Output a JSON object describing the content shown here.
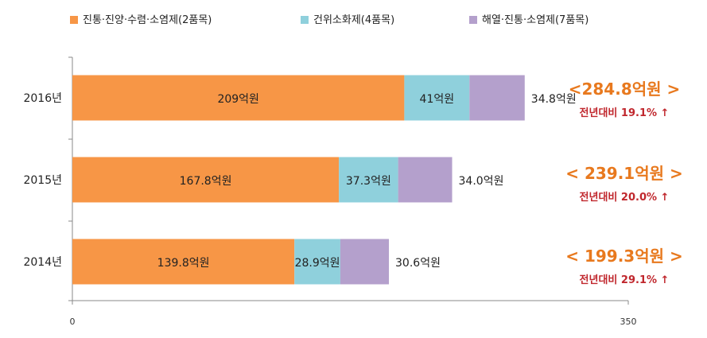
{
  "chart_data": {
    "type": "bar",
    "orientation": "horizontal",
    "stacked": true,
    "categories": [
      "2016년",
      "2015년",
      "2014년"
    ],
    "series": [
      {
        "name": "진통·진양·수렴·소염제(2품목)",
        "color": "#f79646",
        "values": [
          209,
          167.8,
          139.8
        ],
        "labels": [
          "209억원",
          "167.8억원",
          "139.8억원"
        ]
      },
      {
        "name": "건위소화제(4품목)",
        "color": "#8fd0dc",
        "values": [
          41,
          37.3,
          28.9
        ],
        "labels": [
          "41억원",
          "37.3억원",
          "28.9억원"
        ]
      },
      {
        "name": "해열·진통·소염제(7품목)",
        "color": "#b4a0cc",
        "values": [
          34.8,
          34.0,
          30.6
        ],
        "labels": [
          "34.8억원",
          "34.0억원",
          "30.6억원"
        ]
      }
    ],
    "totals": [
      {
        "amount": "<284.8억원 >",
        "yoy": "전년대비 19.1% ↑"
      },
      {
        "amount": "< 239.1억원 >",
        "yoy": "전년대비 20.0% ↑"
      },
      {
        "amount": "< 199.3억원 >",
        "yoy": "전년대비 29.1% ↑"
      }
    ],
    "xlim": [
      0,
      350
    ],
    "xticks": [
      "0",
      "350"
    ],
    "grid": false,
    "legend_position": "top"
  }
}
